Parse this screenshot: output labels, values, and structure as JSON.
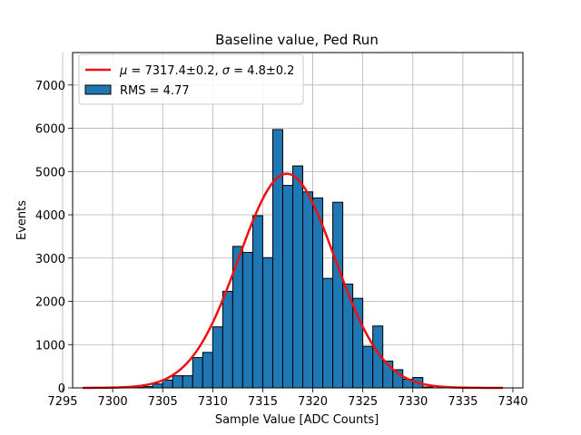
{
  "chart_data": {
    "type": "bar",
    "title": "Baseline value, Ped Run",
    "xlabel": "Sample Value [ADC Counts]",
    "ylabel": "Events",
    "xlim": [
      7296,
      7341
    ],
    "ylim": [
      0,
      7750
    ],
    "xticks": [
      7295,
      7300,
      7305,
      7310,
      7315,
      7320,
      7325,
      7330,
      7335,
      7340
    ],
    "yticks": [
      0,
      1000,
      2000,
      3000,
      4000,
      5000,
      6000,
      7000
    ],
    "grid": true,
    "legend_placement": "top-left",
    "bin_width": 1,
    "histogram": {
      "name": "RMS = 4.77",
      "color": "#1f77b4",
      "bins": [
        {
          "x": 7302,
          "y": 10
        },
        {
          "x": 7303,
          "y": 30
        },
        {
          "x": 7304,
          "y": 90
        },
        {
          "x": 7305,
          "y": 180
        },
        {
          "x": 7306,
          "y": 280
        },
        {
          "x": 7307,
          "y": 280
        },
        {
          "x": 7308,
          "y": 700
        },
        {
          "x": 7309,
          "y": 820
        },
        {
          "x": 7310,
          "y": 1410
        },
        {
          "x": 7311,
          "y": 2230
        },
        {
          "x": 7312,
          "y": 3270
        },
        {
          "x": 7313,
          "y": 3130
        },
        {
          "x": 7314,
          "y": 3980
        },
        {
          "x": 7315,
          "y": 3010
        },
        {
          "x": 7316,
          "y": 5970
        },
        {
          "x": 7317,
          "y": 4680
        },
        {
          "x": 7318,
          "y": 5130
        },
        {
          "x": 7319,
          "y": 4530
        },
        {
          "x": 7320,
          "y": 4390
        },
        {
          "x": 7321,
          "y": 2530
        },
        {
          "x": 7322,
          "y": 4290
        },
        {
          "x": 7323,
          "y": 2400
        },
        {
          "x": 7324,
          "y": 2070
        },
        {
          "x": 7325,
          "y": 960
        },
        {
          "x": 7326,
          "y": 1430
        },
        {
          "x": 7327,
          "y": 620
        },
        {
          "x": 7328,
          "y": 420
        },
        {
          "x": 7329,
          "y": 200
        },
        {
          "x": 7330,
          "y": 240
        },
        {
          "x": 7331,
          "y": 20
        }
      ]
    },
    "fit": {
      "name": "$\\mu = 7317.4 \\pm 0.2$, $\\sigma = 4.8 \\pm 0.2$",
      "label_parts": {
        "mu_symbol": "μ",
        "mu_text": " = 7317.4±0.2, ",
        "sigma_symbol": "σ",
        "sigma_text": " = 4.8±0.2"
      },
      "color": "#ee1111",
      "mu": 7317.4,
      "sigma": 4.8,
      "amplitude": 4950,
      "x_range": [
        7297,
        7339
      ]
    }
  }
}
